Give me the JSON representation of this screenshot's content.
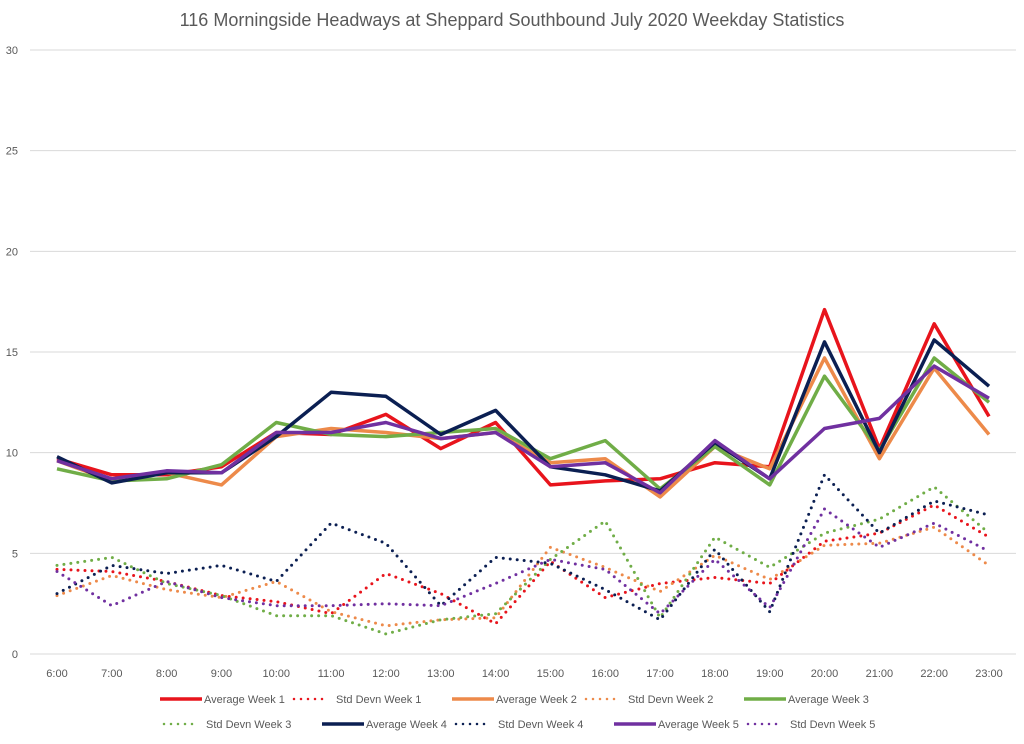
{
  "chart_data": {
    "type": "line",
    "title": "116 Morningside Headways at Sheppard Southbound July 2020 Weekday Statistics",
    "xlabel": "",
    "ylabel": "",
    "ylim": [
      0,
      30
    ],
    "yticks": [
      0,
      5,
      10,
      15,
      20,
      25,
      30
    ],
    "grid": true,
    "legend_position": "bottom",
    "categories": [
      "6:00",
      "7:00",
      "8:00",
      "9:00",
      "10:00",
      "11:00",
      "12:00",
      "13:00",
      "14:00",
      "15:00",
      "16:00",
      "17:00",
      "18:00",
      "19:00",
      "20:00",
      "21:00",
      "22:00",
      "23:00"
    ],
    "series": [
      {
        "name": "Average Week 1",
        "style": "solid",
        "color": "#e8141c",
        "values": [
          9.7,
          8.9,
          8.9,
          9.3,
          11.0,
          10.9,
          11.9,
          10.2,
          11.5,
          8.4,
          8.6,
          8.7,
          9.5,
          9.3,
          17.1,
          10.2,
          16.4,
          11.8
        ]
      },
      {
        "name": "Std Devn Week 1",
        "style": "dotted",
        "color": "#e8141c",
        "values": [
          4.2,
          4.1,
          3.6,
          2.9,
          2.6,
          2.0,
          4.0,
          3.0,
          1.5,
          4.6,
          2.8,
          3.5,
          3.8,
          3.5,
          5.6,
          6.0,
          7.4,
          5.8
        ]
      },
      {
        "name": "Average Week 2",
        "style": "solid",
        "color": "#ed8a4a",
        "values": [
          9.6,
          8.6,
          9.0,
          8.4,
          10.8,
          11.2,
          11.0,
          10.7,
          11.0,
          9.5,
          9.7,
          7.8,
          10.3,
          9.2,
          14.7,
          9.7,
          14.2,
          10.9
        ]
      },
      {
        "name": "Std Devn Week 2",
        "style": "dotted",
        "color": "#ed8a4a",
        "values": [
          2.9,
          3.9,
          3.2,
          2.8,
          3.6,
          2.1,
          1.4,
          1.7,
          1.8,
          5.3,
          4.3,
          3.1,
          4.9,
          3.7,
          5.4,
          5.5,
          6.3,
          4.4
        ]
      },
      {
        "name": "Average Week 3",
        "style": "solid",
        "color": "#70ad47",
        "values": [
          9.2,
          8.6,
          8.7,
          9.4,
          11.5,
          10.9,
          10.8,
          11.0,
          11.2,
          9.7,
          10.6,
          8.2,
          10.3,
          8.4,
          13.8,
          10.1,
          14.7,
          12.5
        ]
      },
      {
        "name": "Std Devn Week 3",
        "style": "dotted",
        "color": "#70ad47",
        "values": [
          4.4,
          4.8,
          3.5,
          2.9,
          1.9,
          1.9,
          1.0,
          1.7,
          2.0,
          4.7,
          6.6,
          1.8,
          5.8,
          4.3,
          6.0,
          6.7,
          8.3,
          6.0
        ]
      },
      {
        "name": "Average Week 4",
        "style": "solid",
        "color": "#0b1f52",
        "values": [
          9.8,
          8.5,
          9.0,
          9.0,
          10.8,
          13.0,
          12.8,
          10.9,
          12.1,
          9.3,
          8.9,
          8.1,
          10.5,
          8.7,
          15.5,
          10.0,
          15.6,
          13.3
        ]
      },
      {
        "name": "Std Devn Week 4",
        "style": "dotted",
        "color": "#0b1f52",
        "values": [
          3.0,
          4.4,
          4.0,
          4.4,
          3.6,
          6.5,
          5.5,
          2.4,
          4.8,
          4.5,
          3.2,
          1.7,
          5.2,
          2.1,
          8.9,
          6.0,
          7.6,
          6.9
        ]
      },
      {
        "name": "Average Week 5",
        "style": "solid",
        "color": "#7030a0",
        "values": [
          9.6,
          8.7,
          9.1,
          9.0,
          11.0,
          11.0,
          11.5,
          10.7,
          11.0,
          9.3,
          9.5,
          8.0,
          10.6,
          8.7,
          11.2,
          11.7,
          14.3,
          12.7
        ]
      },
      {
        "name": "Std Devn Week 5",
        "style": "dotted",
        "color": "#7030a0",
        "values": [
          4.1,
          2.4,
          3.6,
          2.8,
          2.4,
          2.4,
          2.5,
          2.4,
          3.5,
          4.7,
          4.2,
          2.0,
          4.7,
          2.3,
          7.2,
          5.3,
          6.5,
          5.1
        ]
      }
    ]
  }
}
